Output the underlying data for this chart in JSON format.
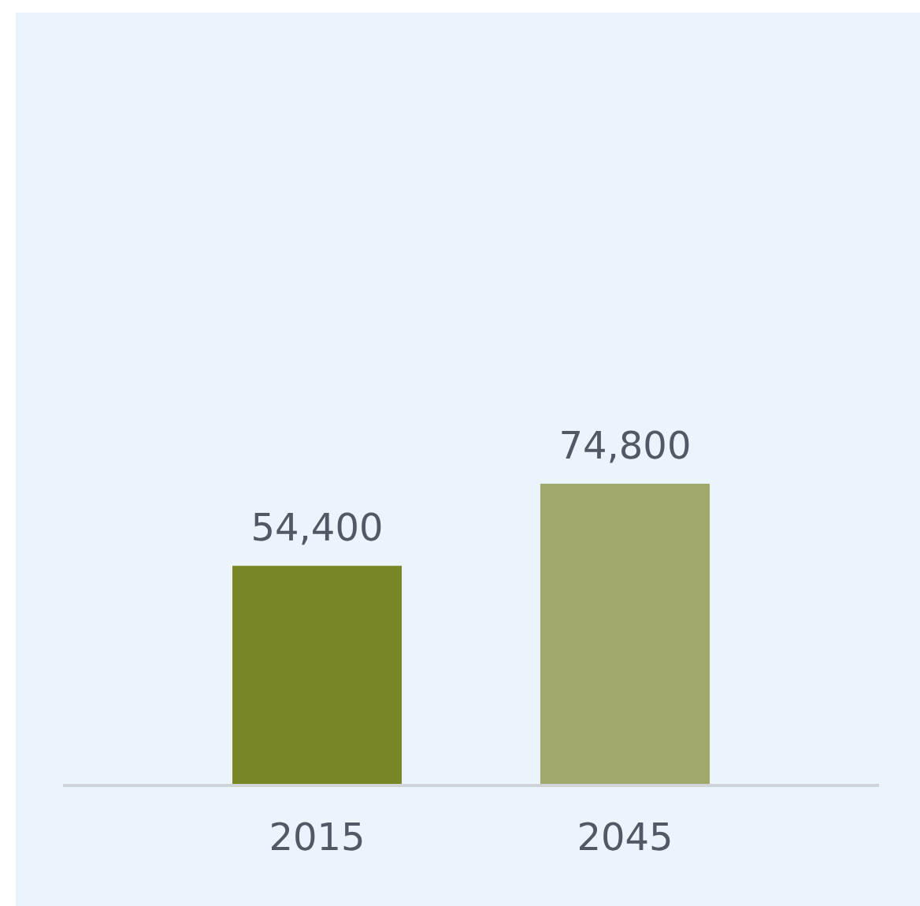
{
  "chart_data": {
    "type": "bar",
    "categories": [
      "2015",
      "2045"
    ],
    "values": [
      54400,
      74800
    ],
    "value_labels": [
      "54,400",
      "74,800"
    ],
    "colors": [
      "#7a8526",
      "#a0a96b"
    ]
  }
}
